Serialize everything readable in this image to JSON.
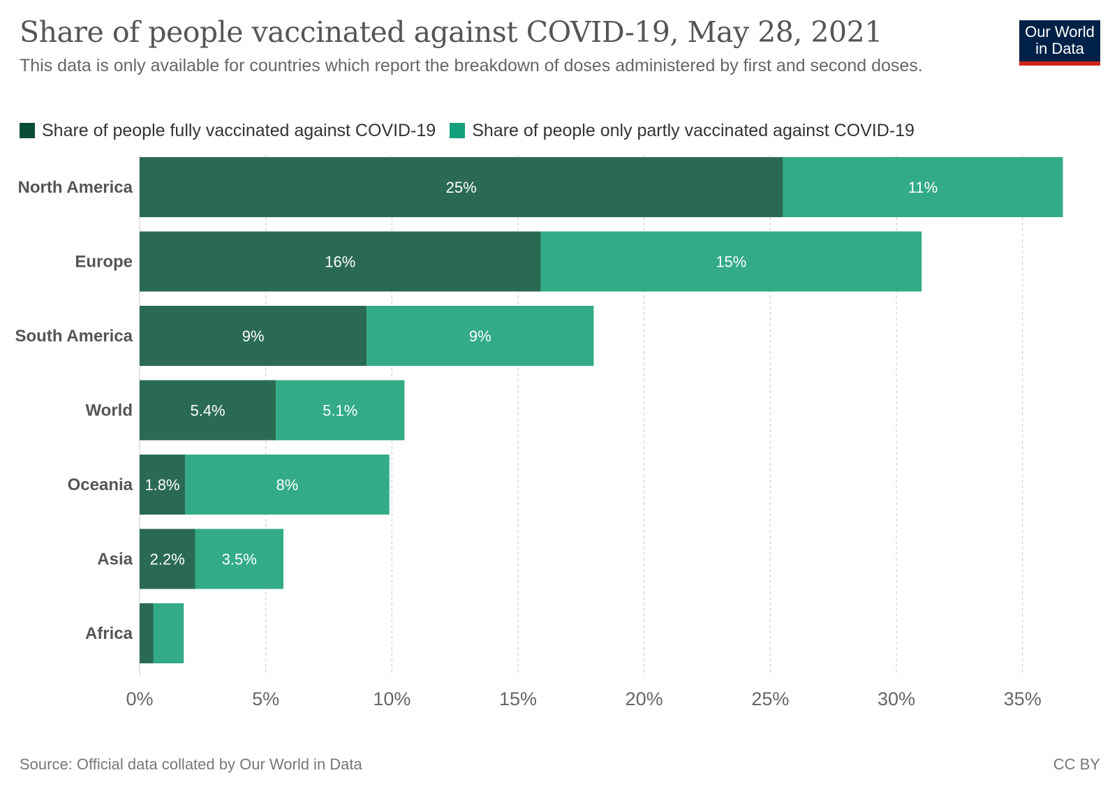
{
  "header": {
    "title": "Share of people vaccinated against COVID-19, May 28, 2021",
    "subtitle": "This data is only available for countries which report the breakdown of doses administered by first and second doses."
  },
  "logo": {
    "line1": "Our World",
    "line2": "in Data"
  },
  "footer": {
    "source": "Source: Official data collated by Our World in Data",
    "license": "CC BY"
  },
  "colors": {
    "fully": "#2a6a53",
    "partly": "#32ab86",
    "legend_fully": "#0a4d35",
    "legend_partly": "#14a07a"
  },
  "chart_data": {
    "type": "bar",
    "orientation": "horizontal",
    "stacked": true,
    "title": "Share of people vaccinated against COVID-19, May 28, 2021",
    "categories": [
      "North America",
      "Europe",
      "South America",
      "World",
      "Oceania",
      "Asia",
      "Africa"
    ],
    "series": [
      {
        "name": "Share of people fully vaccinated against COVID-19",
        "values": [
          25.5,
          15.9,
          9.0,
          5.4,
          1.8,
          2.2,
          0.55
        ],
        "labels": [
          "25%",
          "16%",
          "9%",
          "5.4%",
          "1.8%",
          "2.2%",
          ""
        ]
      },
      {
        "name": "Share of people only partly vaccinated against COVID-19",
        "values": [
          11.1,
          15.1,
          9.0,
          5.1,
          8.1,
          3.5,
          1.2
        ],
        "labels": [
          "11%",
          "15%",
          "9%",
          "5.1%",
          "8%",
          "3.5%",
          ""
        ]
      }
    ],
    "xlim": [
      0,
      37
    ],
    "xticks": [
      0,
      5,
      10,
      15,
      20,
      25,
      30,
      35
    ],
    "xtick_labels": [
      "0%",
      "5%",
      "10%",
      "15%",
      "20%",
      "25%",
      "30%",
      "35%"
    ],
    "grid": "vertical-dashed",
    "legend_position": "top-left"
  }
}
